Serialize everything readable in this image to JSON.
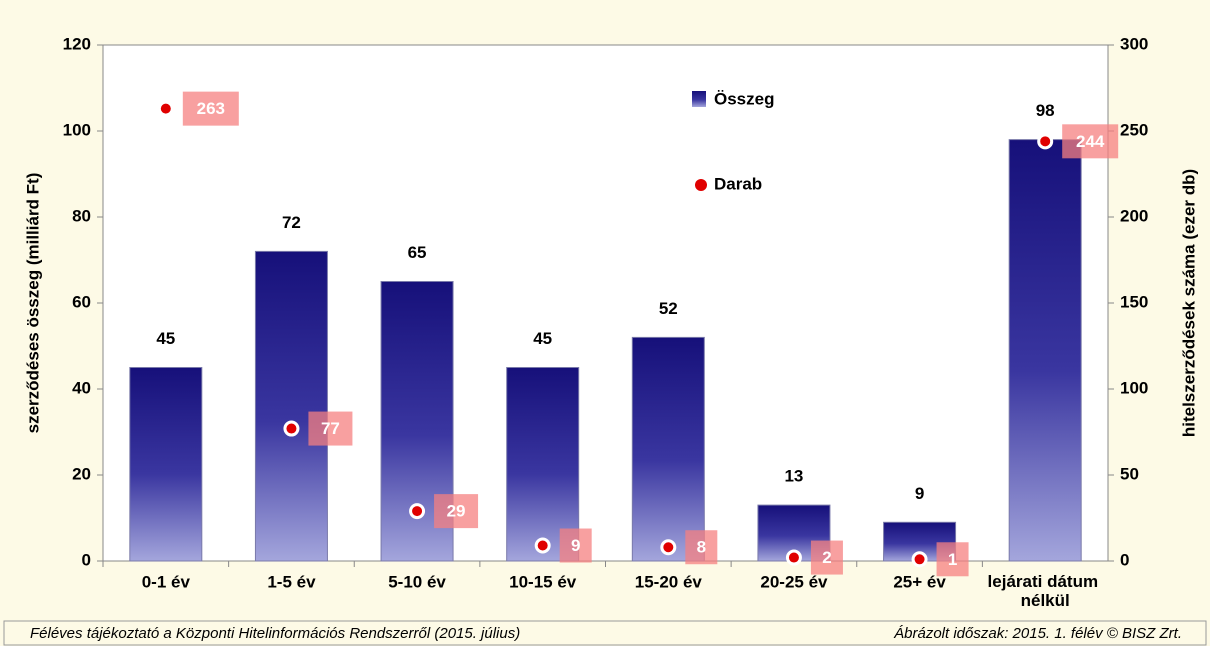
{
  "chart_data": {
    "type": "bar_dot",
    "categories": [
      "0-1 év",
      "1-5 év",
      "5-10 év",
      "10-15 év",
      "15-20 év",
      "20-25 év",
      "25+ év",
      "lejárati dátum nélkül"
    ],
    "series": [
      {
        "name": "Összeg",
        "color": "#1a1080",
        "values": [
          45,
          72,
          65,
          45,
          52,
          13,
          9,
          98
        ]
      },
      {
        "name": "Darab",
        "color": "#e00000",
        "axis": "y2",
        "values": [
          263,
          77,
          29,
          9,
          8,
          2,
          1,
          244
        ]
      }
    ],
    "ylabel": "szerződéses összeg (milliárd Ft)",
    "y2label": "hitelszerződések száma (ezer db)",
    "ylim": [
      0,
      120
    ],
    "yticks": [
      0,
      20,
      40,
      60,
      80,
      100,
      120
    ],
    "y2lim": [
      0,
      300
    ],
    "y2ticks": [
      0,
      50,
      100,
      150,
      200,
      250,
      300
    ],
    "footer_left": "Féléves tájékoztató a Központi Hitelinformációs Rendszerről (2015. július)",
    "footer_right": "Ábrázolt időszak: 2015. 1. félév © BISZ Zrt."
  }
}
